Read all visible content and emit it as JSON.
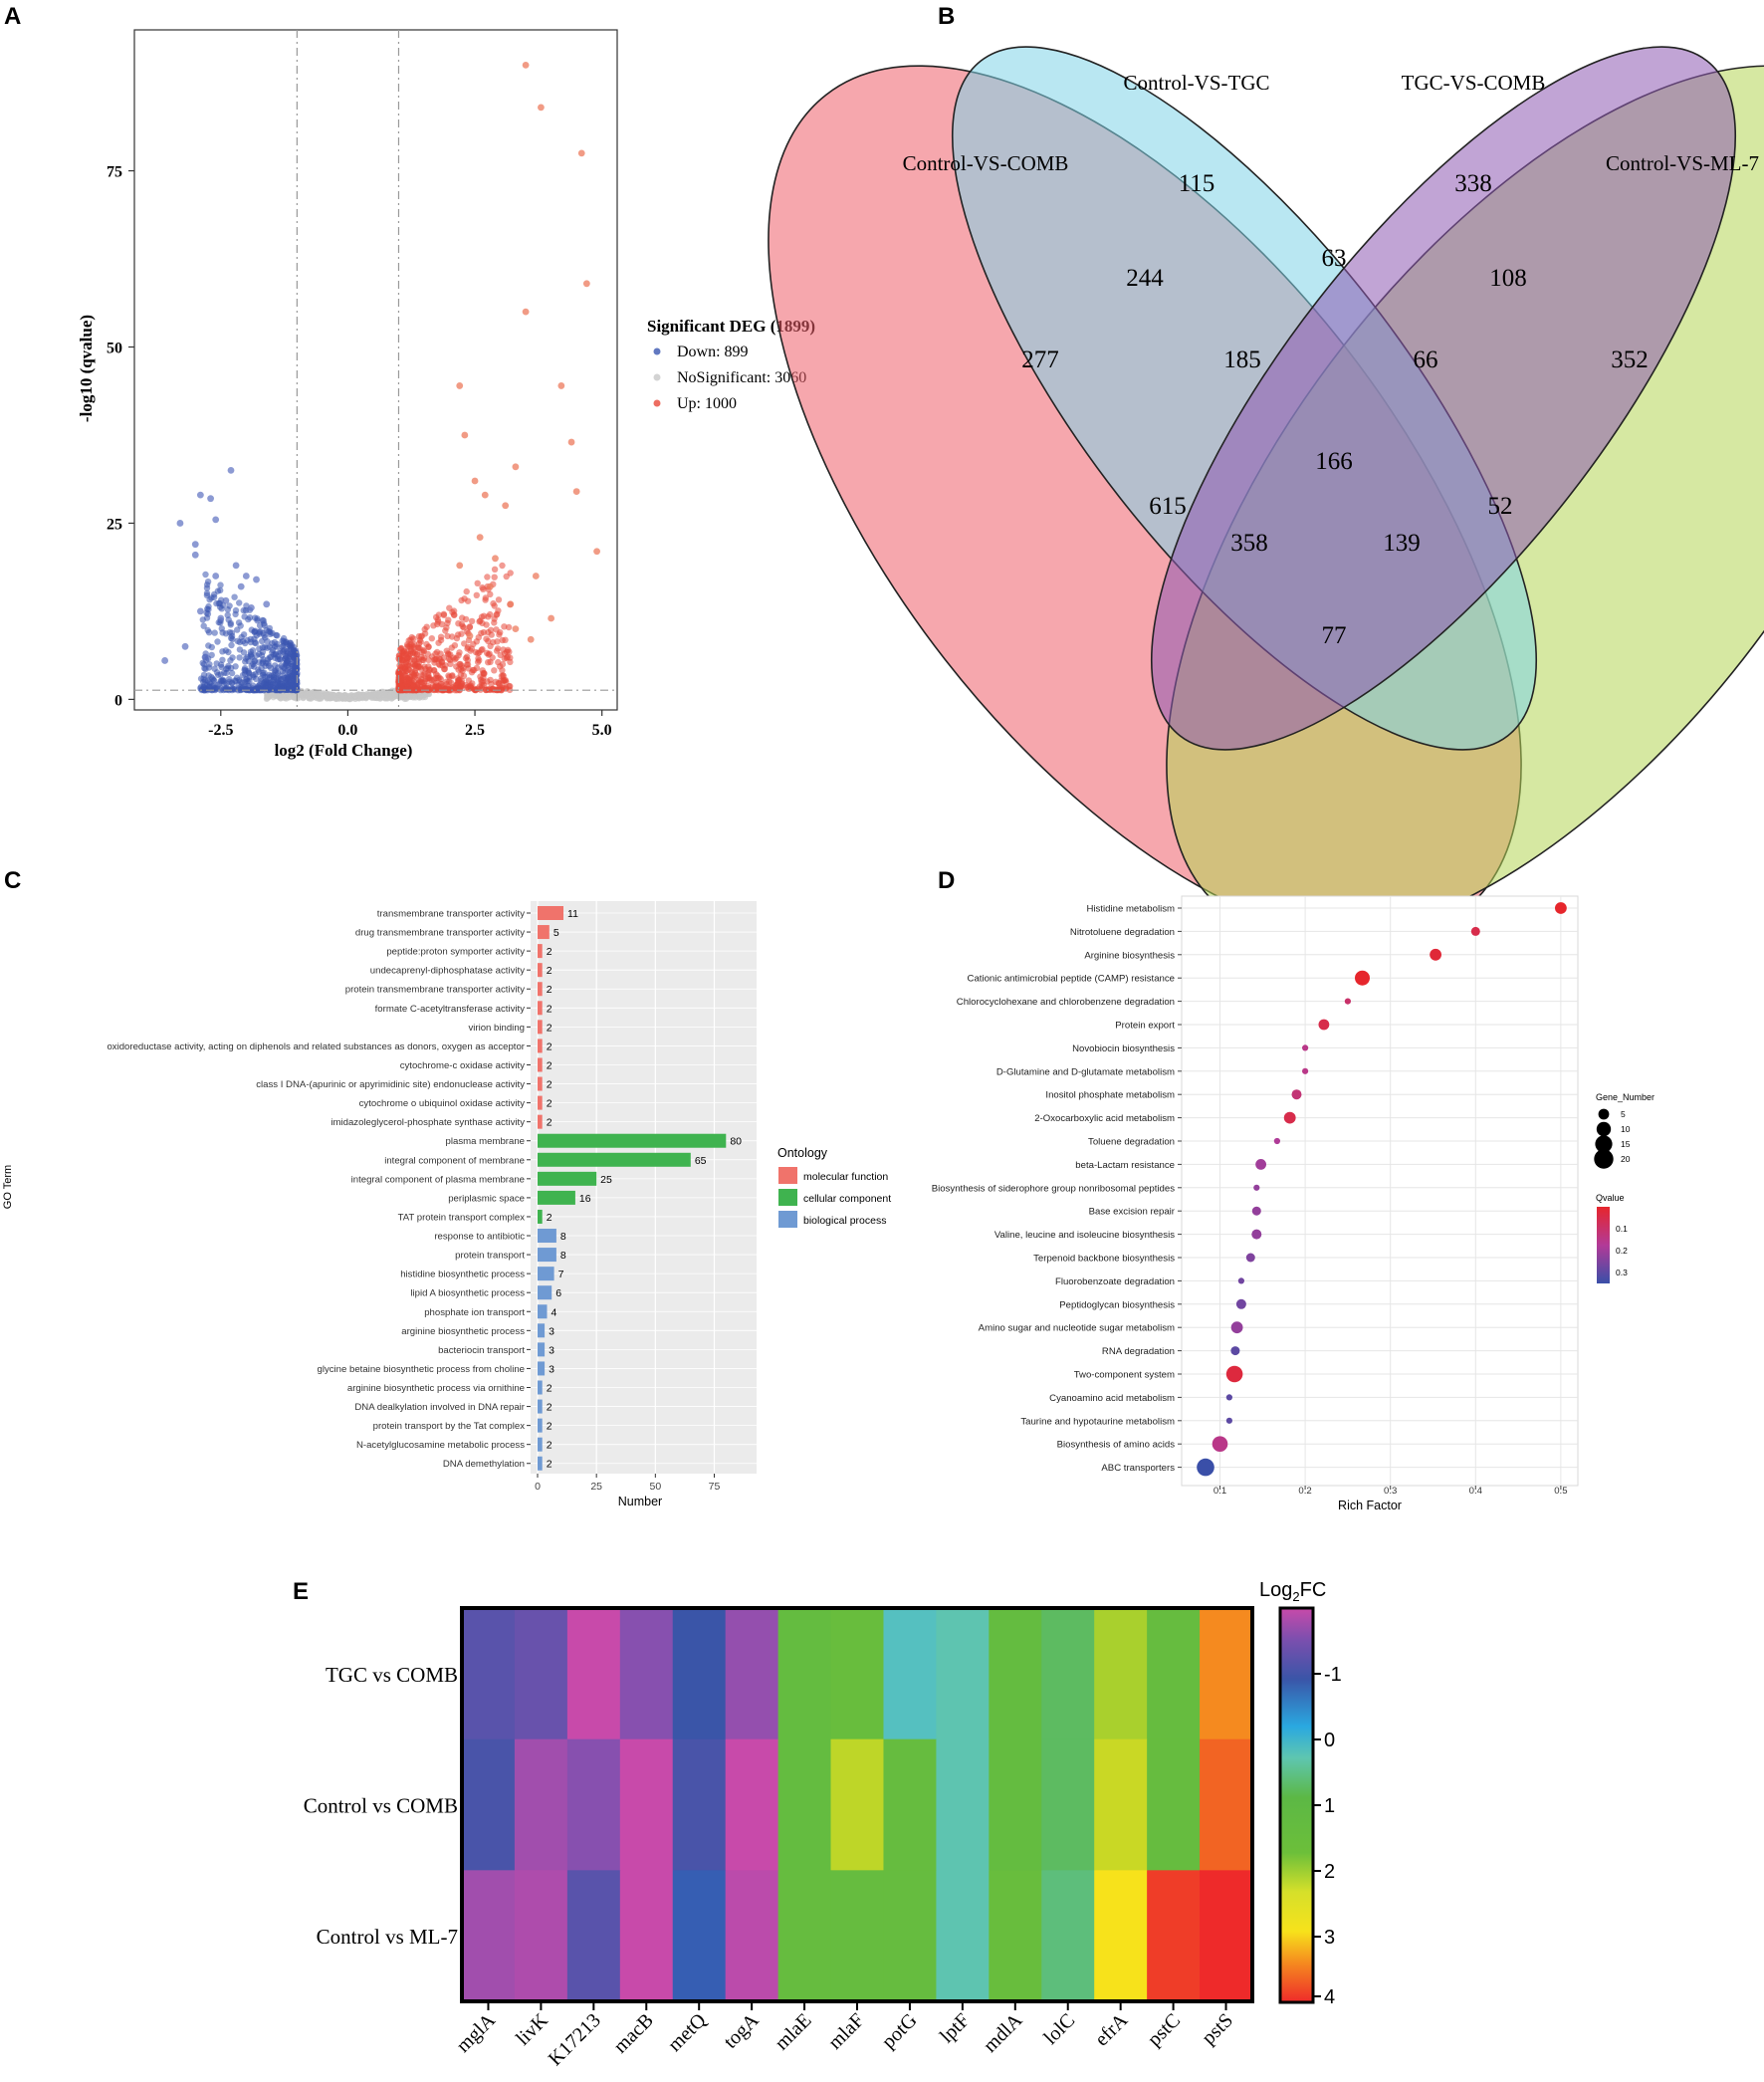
{
  "panel_labels": [
    "A",
    "B",
    "C",
    "D",
    "E"
  ],
  "chart_data": [
    {
      "type": "scatter",
      "panel": "A",
      "xlabel": "log2 (Fold Change)",
      "ylabel": "-log10 (qvalue)",
      "xlim": [
        -4.2,
        5.3
      ],
      "ylim": [
        -1.5,
        95
      ],
      "xticks": [
        -2.5,
        0.0,
        2.5,
        5.0
      ],
      "xtick_labels": [
        "-2.5",
        "0.0",
        "2.5",
        "5.0"
      ],
      "yticks": [
        0,
        25,
        50,
        75
      ],
      "ytick_labels": [
        "0",
        "25",
        "50",
        "75"
      ],
      "fc_thresholds": [
        -1,
        1
      ],
      "q_threshold": 1.3,
      "legend_title": "Significant DEG (1899)",
      "legend": [
        {
          "label": "Down: 899",
          "color": "#3a56b0"
        },
        {
          "label": "NoSignificant: 3060",
          "color": "#c8c8c8"
        },
        {
          "label": "Up: 1000",
          "color": "#e8483a"
        }
      ],
      "up_highlight": [
        [
          3.5,
          90
        ],
        [
          3.8,
          84
        ],
        [
          4.6,
          77.5
        ],
        [
          4.7,
          59
        ],
        [
          3.5,
          55
        ],
        [
          4.2,
          44.5
        ],
        [
          2.2,
          44.5
        ],
        [
          2.3,
          37.5
        ],
        [
          4.4,
          36.5
        ],
        [
          3.3,
          33
        ],
        [
          4.5,
          29.5
        ],
        [
          4.9,
          21
        ],
        [
          2.5,
          31
        ],
        [
          2.7,
          29
        ],
        [
          3.1,
          27.5
        ],
        [
          2.9,
          20
        ],
        [
          3.7,
          17.5
        ],
        [
          3.2,
          13.5
        ],
        [
          4.0,
          11.5
        ],
        [
          2.2,
          19
        ],
        [
          2.6,
          23
        ],
        [
          2.8,
          16
        ],
        [
          3.3,
          10
        ],
        [
          2.4,
          9
        ],
        [
          3.6,
          8.5
        ]
      ],
      "down_highlight": [
        [
          -2.3,
          32.5
        ],
        [
          -2.9,
          29
        ],
        [
          -2.7,
          28.5
        ],
        [
          -3.3,
          25
        ],
        [
          -2.6,
          25.5
        ],
        [
          -3.0,
          22
        ],
        [
          -3.0,
          20.5
        ],
        [
          -2.2,
          19
        ],
        [
          -2.0,
          17.5
        ],
        [
          -2.6,
          17.5
        ],
        [
          -1.8,
          17
        ],
        [
          -2.1,
          16
        ],
        [
          -3.6,
          5.5
        ],
        [
          -2.8,
          6
        ],
        [
          -3.2,
          7.5
        ],
        [
          -2.9,
          12.5
        ],
        [
          -1.6,
          13.5
        ],
        [
          -2.4,
          14
        ],
        [
          -1.9,
          13
        ],
        [
          -2.5,
          11.5
        ]
      ]
    },
    {
      "type": "venn",
      "panel": "B",
      "sets": [
        "Control-VS-COMB",
        "Control-VS-TGC",
        "TGC-VS-COMB",
        "Control-VS-ML-7"
      ],
      "set_colors": [
        "#ef5f6a",
        "#7fd3e8",
        "#8e5ab2",
        "#b5d655"
      ],
      "regions": [
        {
          "id": "A",
          "value": 277
        },
        {
          "id": "B",
          "value": 115
        },
        {
          "id": "C",
          "value": 338
        },
        {
          "id": "D",
          "value": 352
        },
        {
          "id": "AB",
          "value": 244
        },
        {
          "id": "BC",
          "value": 63
        },
        {
          "id": "CD",
          "value": 108
        },
        {
          "id": "ABC",
          "value": 185
        },
        {
          "id": "BCD",
          "value": 66
        },
        {
          "id": "ABCD",
          "value": 166
        },
        {
          "id": "AC",
          "value": 615
        },
        {
          "id": "BD",
          "value": 52
        },
        {
          "id": "ACD",
          "value": 358
        },
        {
          "id": "ABD",
          "value": 139
        },
        {
          "id": "AD",
          "value": 77
        }
      ]
    },
    {
      "type": "bar",
      "orientation": "horizontal",
      "panel": "C",
      "xlabel": "Number",
      "ylabel": "GO Term",
      "xlim": [
        0,
        90
      ],
      "xticks": [
        0,
        25,
        50,
        75
      ],
      "xtick_labels": [
        "0",
        "25",
        "50",
        "75"
      ],
      "legend_title": "Ontology",
      "legend": [
        {
          "label": "molecular function",
          "color": "#f0736b"
        },
        {
          "label": "cellular component",
          "color": "#3fb34f"
        },
        {
          "label": "biological process",
          "color": "#6f9ad3"
        }
      ],
      "categories": [
        "transmembrane transporter activity",
        "drug transmembrane transporter activity",
        "peptide:proton symporter activity",
        "undecaprenyl-diphosphatase activity",
        "protein transmembrane transporter activity",
        "formate C-acetyltransferase activity",
        "virion binding",
        "oxidoreductase activity, acting on diphenols and related substances as donors, oxygen as acceptor",
        "cytochrome-c oxidase activity",
        "class I DNA-(apurinic or apyrimidinic site) endonuclease activity",
        "cytochrome o ubiquinol oxidase activity",
        "imidazoleglycerol-phosphate synthase activity",
        "plasma membrane",
        "integral component of membrane",
        "integral component of plasma membrane",
        "periplasmic space",
        "TAT protein transport complex",
        "response to antibiotic",
        "protein transport",
        "histidine biosynthetic process",
        "lipid A biosynthetic process",
        "phosphate ion transport",
        "arginine biosynthetic process",
        "bacteriocin transport",
        "glycine betaine biosynthetic process from choline",
        "arginine biosynthetic process via ornithine",
        "DNA dealkylation involved in DNA repair",
        "protein transport by the Tat complex",
        "N-acetylglucosamine metabolic process",
        "DNA demethylation"
      ],
      "values": [
        11,
        5,
        2,
        2,
        2,
        2,
        2,
        2,
        2,
        2,
        2,
        2,
        80,
        65,
        25,
        16,
        2,
        8,
        8,
        7,
        6,
        4,
        3,
        3,
        3,
        2,
        2,
        2,
        2,
        2
      ],
      "value_labels": [
        "11",
        "5",
        "2",
        "2",
        "2",
        "2",
        "2",
        "2",
        "2",
        "2",
        "2",
        "2",
        "80",
        "65",
        "25",
        "16",
        "2",
        "8",
        "8",
        "7",
        "6",
        "4",
        "3",
        "3",
        "3",
        "2",
        "2",
        "2",
        "2",
        "2"
      ],
      "groups": [
        0,
        0,
        0,
        0,
        0,
        0,
        0,
        0,
        0,
        0,
        0,
        0,
        1,
        1,
        1,
        1,
        1,
        2,
        2,
        2,
        2,
        2,
        2,
        2,
        2,
        2,
        2,
        2,
        2,
        2
      ]
    },
    {
      "type": "scatter",
      "panel": "D",
      "xlabel": "Rich Factor",
      "xlim": [
        0.055,
        0.52
      ],
      "xticks": [
        0.1,
        0.2,
        0.3,
        0.4,
        0.5
      ],
      "xtick_labels": [
        "0.1",
        "0.2",
        "0.3",
        "0.4",
        "0.5"
      ],
      "size_legend_title": "Gene_Number",
      "size_legend": [
        5,
        10,
        15,
        20
      ],
      "size_legend_labels": [
        "5",
        "10",
        "15",
        "20"
      ],
      "color_legend_title": "Qvalue",
      "color_legend_ticks": [
        0.1,
        0.2,
        0.3
      ],
      "color_legend_labels": [
        "0.1",
        "0.2",
        "0.3"
      ],
      "color_range": [
        "#e6262c",
        "#3a4fa8"
      ],
      "categories": [
        "Histidine metabolism",
        "Nitrotoluene degradation",
        "Arginine biosynthesis",
        "Cationic antimicrobial peptide (CAMP) resistance",
        "Chlorocyclohexane and chlorobenzene degradation",
        "Protein export",
        "Novobiocin biosynthesis",
        "D-Glutamine and D-glutamate metabolism",
        "Inositol phosphate metabolism",
        "2-Oxocarboxylic acid metabolism",
        "Toluene degradation",
        "beta-Lactam resistance",
        "Biosynthesis of siderophore group nonribosomal peptides",
        "Base excision repair",
        "Valine, leucine and isoleucine biosynthesis",
        "Terpenoid backbone biosynthesis",
        "Fluorobenzoate degradation",
        "Peptidoglycan biosynthesis",
        "Amino sugar and nucleotide sugar metabolism",
        "RNA degradation",
        "Two-component system",
        "Cyanoamino acid metabolism",
        "Taurine and hypotaurine metabolism",
        "Biosynthesis of amino acids",
        "ABC transporters"
      ],
      "rich_factor": [
        0.5,
        0.4,
        0.353,
        0.267,
        0.25,
        0.222,
        0.2,
        0.2,
        0.19,
        0.182,
        0.167,
        0.148,
        0.143,
        0.143,
        0.143,
        0.136,
        0.125,
        0.125,
        0.12,
        0.118,
        0.117,
        0.111,
        0.111,
        0.1,
        0.083
      ],
      "gene_number": [
        6,
        3,
        6,
        11,
        1,
        5,
        1,
        1,
        4,
        6,
        1,
        5,
        1,
        3,
        4,
        3,
        1,
        4,
        6,
        3,
        14,
        1,
        1,
        12,
        16
      ],
      "qvalue": [
        0.0,
        0.05,
        0.02,
        0.0,
        0.1,
        0.05,
        0.15,
        0.15,
        0.12,
        0.05,
        0.18,
        0.2,
        0.22,
        0.22,
        0.22,
        0.25,
        0.27,
        0.27,
        0.22,
        0.3,
        0.03,
        0.3,
        0.3,
        0.15,
        0.35
      ]
    },
    {
      "type": "heatmap",
      "panel": "E",
      "rows": [
        "TGC vs COMB",
        "Control vs COMB",
        "Control vs ML-7"
      ],
      "columns": [
        "mglA",
        "livK",
        "K17213",
        "macB",
        "metQ",
        "togA",
        "mlaE",
        "mlaF",
        "potG",
        "lptF",
        "mdlA",
        "lolC",
        "efrA",
        "pstC",
        "pstS"
      ],
      "colorbar_title": "Log2FC",
      "colorbar_title_base": "Log",
      "colorbar_title_sub": "2",
      "colorbar_title_tail": "FC",
      "colorbar_ticks": [
        -1,
        0,
        1,
        2,
        3,
        4
      ],
      "colorbar_tick_labels": [
        "-1",
        "0",
        "1",
        "2",
        "3",
        "4"
      ],
      "colorbar_range": [
        -2,
        4
      ],
      "values": [
        [
          -1.2,
          -1.3,
          -2.0,
          -1.5,
          -1.0,
          -1.6,
          1.7,
          1.9,
          0.5,
          0.9,
          1.7,
          1.2,
          2.4,
          1.8,
          3.5
        ],
        [
          -1.1,
          -1.7,
          -1.5,
          -2.0,
          -1.1,
          -2.0,
          1.7,
          2.5,
          1.8,
          0.9,
          1.7,
          1.2,
          2.6,
          1.8,
          3.7
        ],
        [
          -1.7,
          -1.8,
          -1.2,
          -2.0,
          -0.9,
          -1.9,
          1.8,
          1.8,
          1.8,
          0.9,
          1.9,
          1.1,
          3.0,
          3.9,
          4.0
        ]
      ]
    }
  ]
}
